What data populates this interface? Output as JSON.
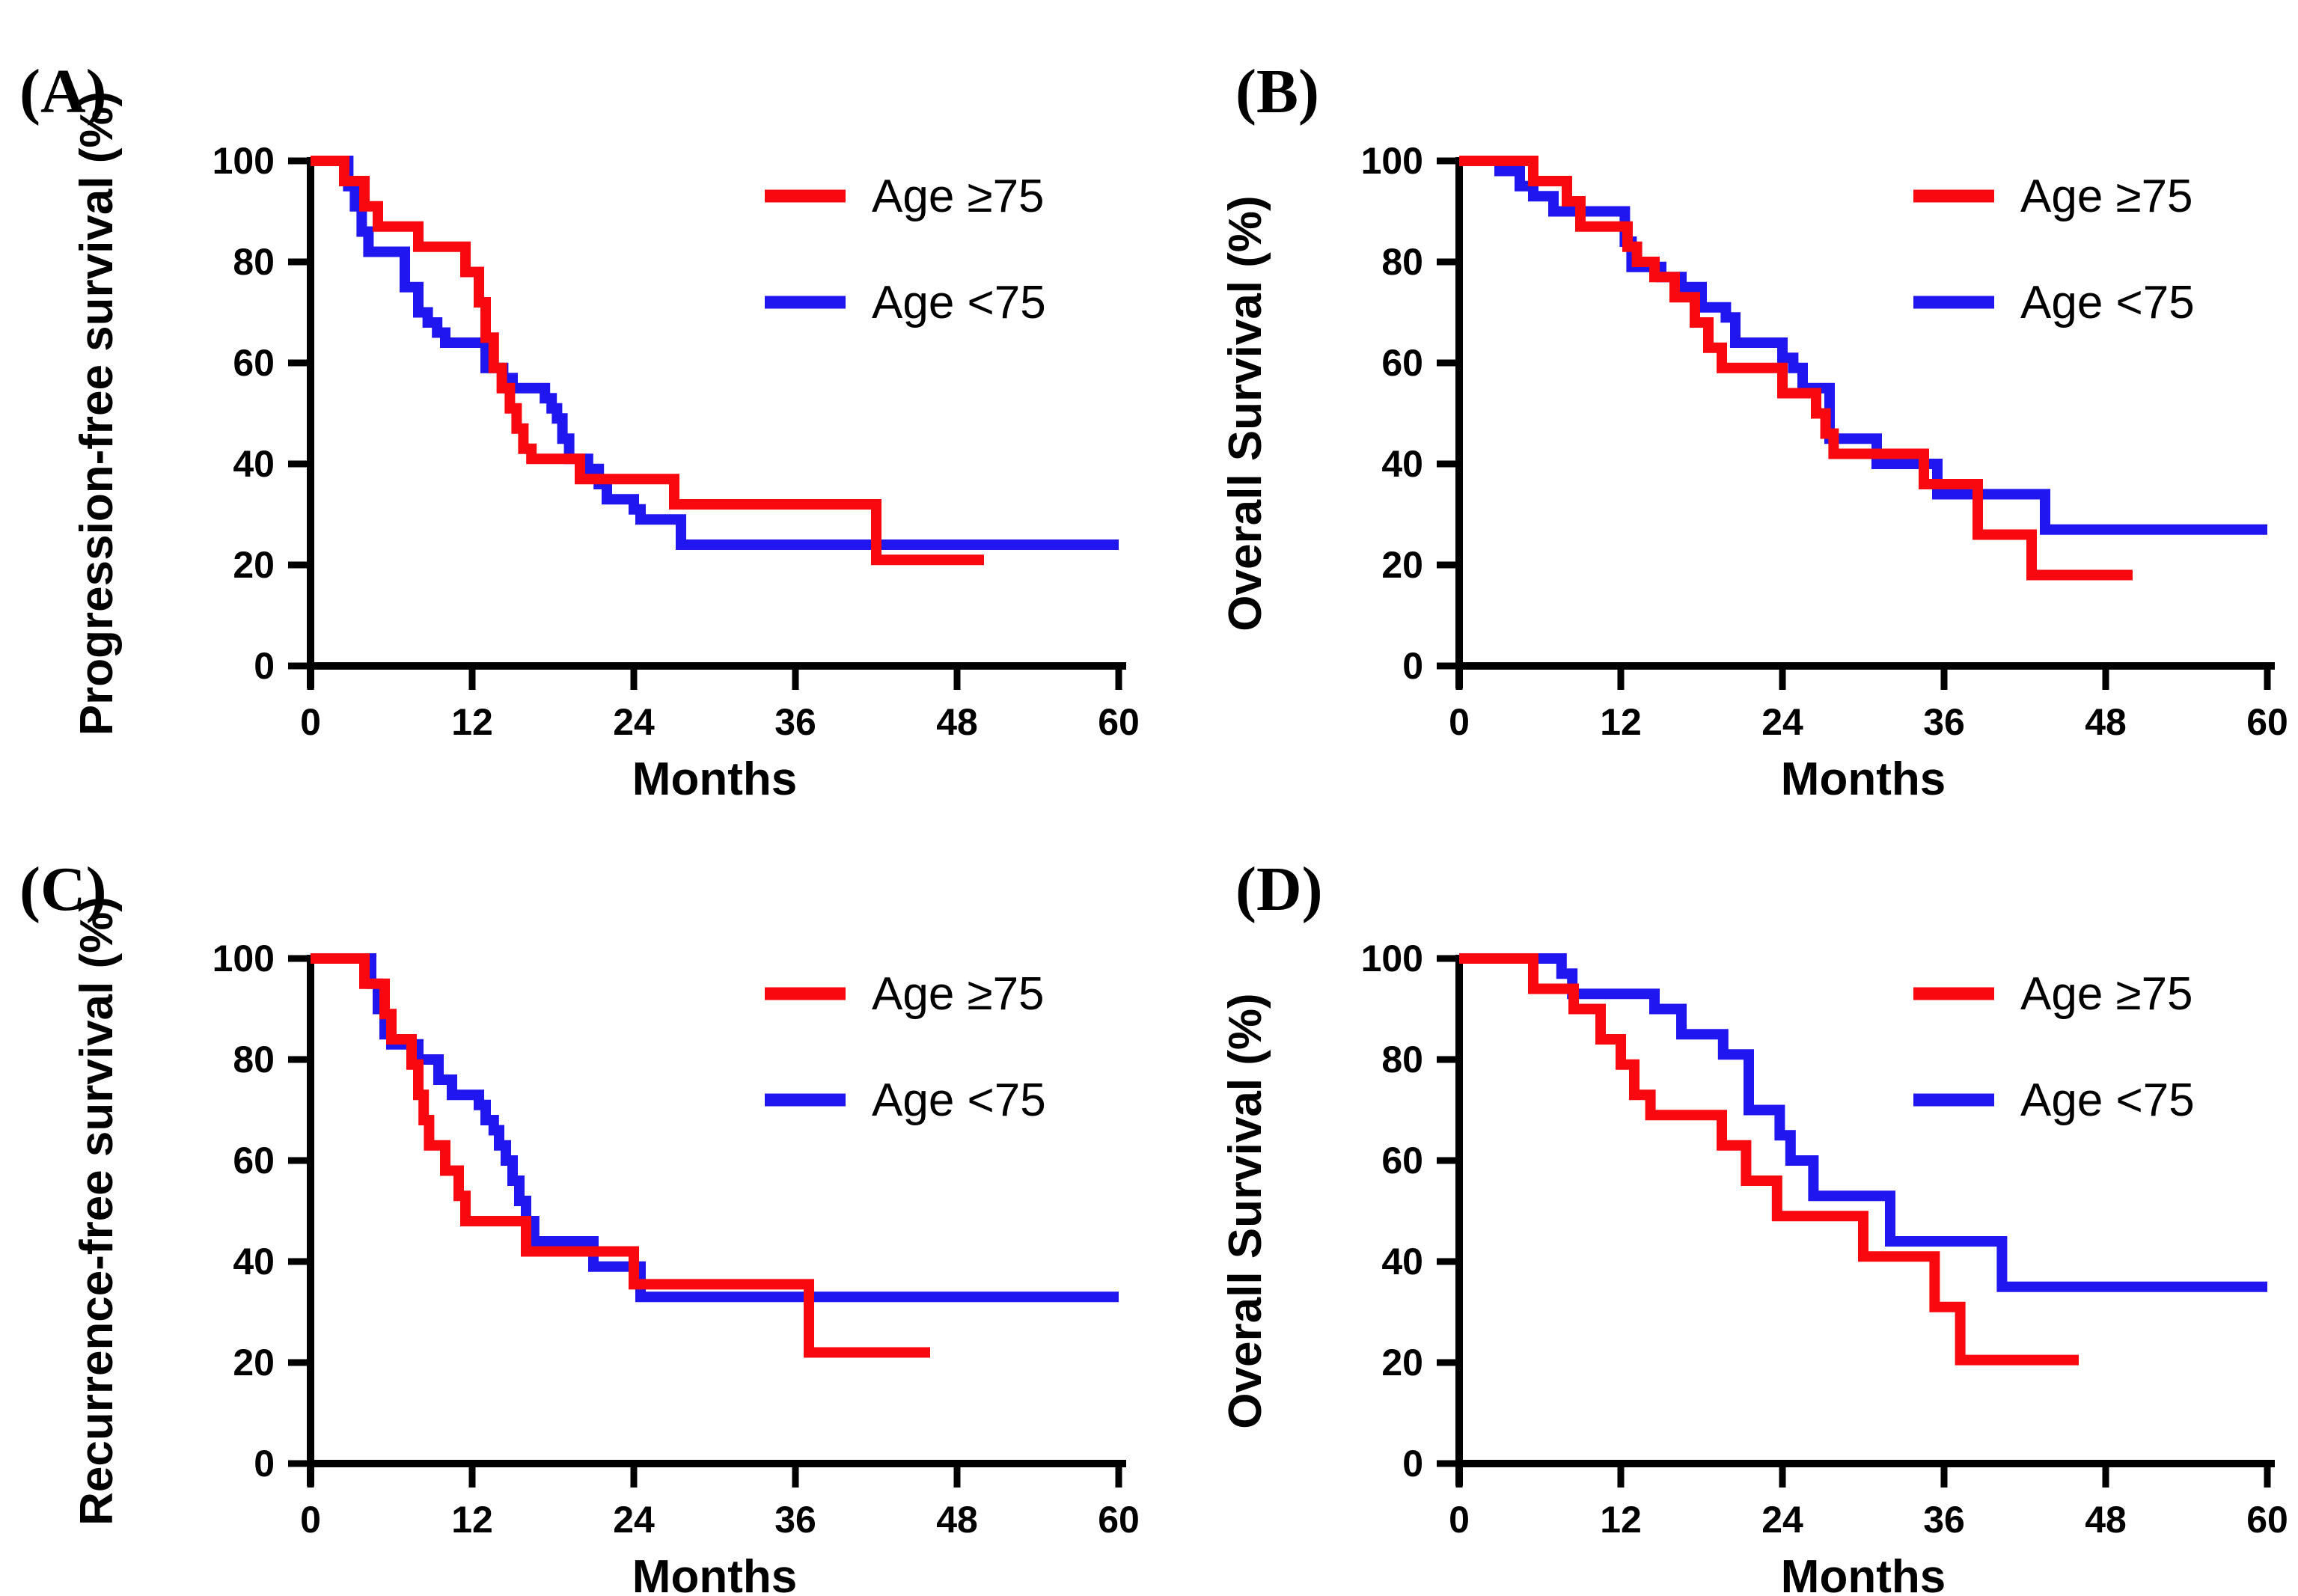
{
  "figure": {
    "background": "#ffffff",
    "axis_color": "#000000",
    "series_colors": {
      "red": "#f9090f",
      "blue": "#2016ef"
    },
    "legend_labels": [
      "Age ≥75",
      "Age <75"
    ]
  },
  "chart_data": [
    {
      "id": "A",
      "panel_label": "(A)",
      "type": "line",
      "subtype": "kaplan-meier-step",
      "title": "",
      "xlabel": "Months",
      "ylabel": "Progression-free survival (%)",
      "xlim": [
        0,
        60
      ],
      "ylim": [
        0,
        100
      ],
      "xticks": [
        0,
        12,
        24,
        36,
        48,
        60
      ],
      "yticks": [
        0,
        20,
        40,
        60,
        80,
        100
      ],
      "grid": false,
      "legend_position": "top-right",
      "letter_x": 26,
      "series": [
        {
          "name": "Age <75",
          "color": "#2016ef",
          "points": [
            [
              0,
              100
            ],
            [
              2.8,
              95
            ],
            [
              3.3,
              91
            ],
            [
              3.8,
              86
            ],
            [
              4.3,
              82
            ],
            [
              7,
              75
            ],
            [
              8,
              70
            ],
            [
              8.7,
              68
            ],
            [
              9.4,
              66
            ],
            [
              10,
              64
            ],
            [
              13,
              59
            ],
            [
              14.3,
              57
            ],
            [
              15,
              55
            ],
            [
              17.4,
              53
            ],
            [
              17.9,
              51
            ],
            [
              18.3,
              49
            ],
            [
              18.7,
              45
            ],
            [
              19.2,
              41
            ],
            [
              20.6,
              39
            ],
            [
              21.4,
              36
            ],
            [
              22,
              33
            ],
            [
              24,
              31
            ],
            [
              24.5,
              29
            ],
            [
              27.5,
              24
            ],
            [
              60,
              24
            ]
          ]
        },
        {
          "name": "Age ≥75",
          "color": "#f9090f",
          "points": [
            [
              0,
              100
            ],
            [
              2.5,
              96
            ],
            [
              4,
              91
            ],
            [
              5,
              87
            ],
            [
              8,
              83
            ],
            [
              11.5,
              78
            ],
            [
              12.5,
              72
            ],
            [
              13,
              65
            ],
            [
              13.6,
              59
            ],
            [
              14.2,
              55
            ],
            [
              14.8,
              51
            ],
            [
              15.3,
              47
            ],
            [
              15.8,
              43
            ],
            [
              16.4,
              41
            ],
            [
              20,
              37
            ],
            [
              27,
              32
            ],
            [
              42,
              21
            ],
            [
              50,
              21
            ]
          ]
        }
      ]
    },
    {
      "id": "B",
      "panel_label": "(B)",
      "type": "line",
      "subtype": "kaplan-meier-step",
      "title": "",
      "xlabel": "Months",
      "ylabel": "Overall Survival (%)",
      "xlim": [
        0,
        60
      ],
      "ylim": [
        0,
        100
      ],
      "xticks": [
        0,
        12,
        24,
        36,
        48,
        60
      ],
      "yticks": [
        0,
        20,
        40,
        60,
        80,
        100
      ],
      "grid": false,
      "legend_position": "top-right",
      "letter_x": 116,
      "series": [
        {
          "name": "Age <75",
          "color": "#2016ef",
          "points": [
            [
              0,
              100
            ],
            [
              3,
              98
            ],
            [
              4.5,
              95
            ],
            [
              5.5,
              93
            ],
            [
              7,
              90
            ],
            [
              12.3,
              84
            ],
            [
              12.8,
              79
            ],
            [
              15,
              77
            ],
            [
              16.5,
              75
            ],
            [
              18,
              71
            ],
            [
              19.8,
              69
            ],
            [
              20.5,
              64
            ],
            [
              24,
              61
            ],
            [
              24.8,
              59
            ],
            [
              25.5,
              55
            ],
            [
              27.5,
              45
            ],
            [
              31,
              40
            ],
            [
              35.5,
              34
            ],
            [
              43.5,
              27
            ],
            [
              60,
              27
            ]
          ]
        },
        {
          "name": "Age ≥75",
          "color": "#f9090f",
          "points": [
            [
              0,
              100
            ],
            [
              5.5,
              96
            ],
            [
              8,
              92
            ],
            [
              9,
              87
            ],
            [
              12.5,
              83
            ],
            [
              13.2,
              80
            ],
            [
              14.5,
              77
            ],
            [
              16,
              73
            ],
            [
              17.5,
              68
            ],
            [
              18.5,
              63
            ],
            [
              19.5,
              59
            ],
            [
              24,
              54
            ],
            [
              26.5,
              50
            ],
            [
              27.2,
              46
            ],
            [
              27.8,
              42
            ],
            [
              34.5,
              36
            ],
            [
              38.5,
              26
            ],
            [
              42.5,
              18
            ],
            [
              50,
              18
            ]
          ]
        }
      ]
    },
    {
      "id": "C",
      "panel_label": "(C)",
      "type": "line",
      "subtype": "kaplan-meier-step",
      "title": "",
      "xlabel": "Months",
      "ylabel": "Recurrence-free survival (%)",
      "xlim": [
        0,
        60
      ],
      "ylim": [
        0,
        100
      ],
      "xticks": [
        0,
        12,
        24,
        36,
        48,
        60
      ],
      "yticks": [
        0,
        20,
        40,
        60,
        80,
        100
      ],
      "grid": false,
      "legend_position": "top-right",
      "letter_x": 26,
      "series": [
        {
          "name": "Age <75",
          "color": "#2016ef",
          "points": [
            [
              0,
              100
            ],
            [
              4.5,
              95
            ],
            [
              5,
              90
            ],
            [
              5.5,
              85
            ],
            [
              6,
              83
            ],
            [
              8,
              80
            ],
            [
              9.5,
              76
            ],
            [
              10.5,
              73
            ],
            [
              12.5,
              71
            ],
            [
              13,
              68
            ],
            [
              13.6,
              66
            ],
            [
              14,
              63
            ],
            [
              14.5,
              60
            ],
            [
              15,
              56
            ],
            [
              15.5,
              52
            ],
            [
              16,
              48
            ],
            [
              16.6,
              44
            ],
            [
              21,
              39
            ],
            [
              24.5,
              33
            ],
            [
              60,
              33
            ]
          ]
        },
        {
          "name": "Age ≥75",
          "color": "#f9090f",
          "points": [
            [
              0,
              100
            ],
            [
              4,
              95
            ],
            [
              5.5,
              89
            ],
            [
              6,
              84
            ],
            [
              7.5,
              79
            ],
            [
              8,
              73
            ],
            [
              8.4,
              68
            ],
            [
              8.8,
              63
            ],
            [
              10,
              58
            ],
            [
              11,
              53
            ],
            [
              11.5,
              48
            ],
            [
              16,
              42
            ],
            [
              24,
              35.5
            ],
            [
              37,
              22
            ],
            [
              46,
              22
            ]
          ]
        }
      ]
    },
    {
      "id": "D",
      "panel_label": "(D)",
      "type": "line",
      "subtype": "kaplan-meier-step",
      "title": "",
      "xlabel": "Months",
      "ylabel": "Overall Survival (%)",
      "xlim": [
        0,
        60
      ],
      "ylim": [
        0,
        100
      ],
      "xticks": [
        0,
        12,
        24,
        36,
        48,
        60
      ],
      "yticks": [
        0,
        20,
        40,
        60,
        80,
        100
      ],
      "grid": false,
      "legend_position": "top-right",
      "letter_x": 116,
      "series": [
        {
          "name": "Age <75",
          "color": "#2016ef",
          "points": [
            [
              0,
              100
            ],
            [
              7.6,
              97
            ],
            [
              8.4,
              93
            ],
            [
              14.5,
              90
            ],
            [
              16.5,
              85
            ],
            [
              19.6,
              81
            ],
            [
              21.5,
              70
            ],
            [
              23.8,
              65
            ],
            [
              24.6,
              60
            ],
            [
              26.3,
              53
            ],
            [
              32,
              44
            ],
            [
              40.3,
              35
            ],
            [
              60,
              35
            ]
          ]
        },
        {
          "name": "Age ≥75",
          "color": "#f9090f",
          "points": [
            [
              0,
              100
            ],
            [
              5.5,
              94
            ],
            [
              8.5,
              90
            ],
            [
              10.5,
              84
            ],
            [
              12,
              79
            ],
            [
              13,
              73
            ],
            [
              14.2,
              69
            ],
            [
              19.5,
              63
            ],
            [
              21.3,
              56
            ],
            [
              23.6,
              49
            ],
            [
              30,
              41
            ],
            [
              35.3,
              31
            ],
            [
              37.2,
              20.5
            ],
            [
              46,
              20.5
            ]
          ]
        }
      ]
    }
  ]
}
